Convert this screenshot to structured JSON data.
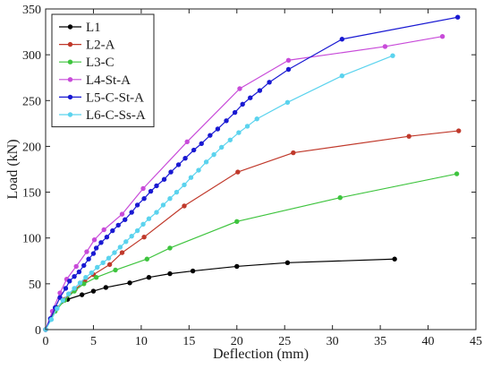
{
  "chart_data": {
    "type": "line",
    "title": "",
    "xlabel": "Deflection (mm)",
    "ylabel": "Load (kN)",
    "xlim": [
      0,
      45
    ],
    "ylim": [
      0,
      350
    ],
    "xticks": [
      0,
      5,
      10,
      15,
      20,
      25,
      30,
      35,
      40,
      45
    ],
    "yticks": [
      0,
      50,
      100,
      150,
      200,
      250,
      300,
      350
    ],
    "grid": false,
    "legend_placement": "top-left",
    "series": [
      {
        "name": "L1",
        "color": "#000000",
        "points": [
          [
            0,
            0
          ],
          [
            1.1,
            24
          ],
          [
            2.3,
            33
          ],
          [
            3.8,
            38
          ],
          [
            5.0,
            42
          ],
          [
            6.3,
            46
          ],
          [
            8.8,
            51
          ],
          [
            10.8,
            57
          ],
          [
            13.0,
            61
          ],
          [
            15.4,
            64
          ],
          [
            20.0,
            69
          ],
          [
            25.3,
            73
          ],
          [
            36.5,
            77
          ]
        ]
      },
      {
        "name": "L2-A",
        "color": "#c0392b",
        "points": [
          [
            0,
            0
          ],
          [
            1.0,
            22
          ],
          [
            2.0,
            33
          ],
          [
            3.1,
            44
          ],
          [
            4.1,
            53
          ],
          [
            5.0,
            60
          ],
          [
            6.7,
            71
          ],
          [
            8.0,
            84
          ],
          [
            10.3,
            101
          ],
          [
            14.5,
            135
          ],
          [
            20.1,
            172
          ],
          [
            25.9,
            193
          ],
          [
            38.0,
            211
          ],
          [
            43.2,
            217
          ]
        ]
      },
      {
        "name": "L3-C",
        "color": "#3ec43e",
        "points": [
          [
            0,
            0
          ],
          [
            1.0,
            20
          ],
          [
            2.0,
            32
          ],
          [
            3.0,
            42
          ],
          [
            4.0,
            50
          ],
          [
            5.3,
            57
          ],
          [
            7.3,
            65
          ],
          [
            10.6,
            77
          ],
          [
            13.0,
            89
          ],
          [
            20.0,
            118
          ],
          [
            30.8,
            144
          ],
          [
            43.0,
            170
          ]
        ]
      },
      {
        "name": "L4-St-A",
        "color": "#c84bd9",
        "points": [
          [
            0,
            0
          ],
          [
            0.7,
            20
          ],
          [
            1.5,
            40
          ],
          [
            2.2,
            55
          ],
          [
            3.2,
            69
          ],
          [
            4.3,
            85
          ],
          [
            5.1,
            98
          ],
          [
            6.1,
            109
          ],
          [
            8.0,
            126
          ],
          [
            10.2,
            154
          ],
          [
            14.8,
            205
          ],
          [
            20.3,
            263
          ],
          [
            25.4,
            294
          ],
          [
            35.5,
            309
          ],
          [
            41.5,
            320
          ]
        ]
      },
      {
        "name": "L5-C-St-A",
        "color": "#1919d2",
        "points": [
          [
            0,
            0
          ],
          [
            0.5,
            12
          ],
          [
            1.0,
            24
          ],
          [
            1.5,
            35
          ],
          [
            2.1,
            45
          ],
          [
            2.5,
            53
          ],
          [
            3.0,
            58
          ],
          [
            3.5,
            63
          ],
          [
            4.0,
            70
          ],
          [
            4.5,
            77
          ],
          [
            5.0,
            83
          ],
          [
            5.3,
            89
          ],
          [
            5.8,
            95
          ],
          [
            6.4,
            101
          ],
          [
            7.0,
            108
          ],
          [
            7.6,
            114
          ],
          [
            8.3,
            120
          ],
          [
            9.0,
            128
          ],
          [
            9.6,
            136
          ],
          [
            10.3,
            143
          ],
          [
            11.0,
            151
          ],
          [
            11.6,
            157
          ],
          [
            12.4,
            164
          ],
          [
            13.1,
            172
          ],
          [
            13.9,
            180
          ],
          [
            14.6,
            187
          ],
          [
            15.5,
            196
          ],
          [
            16.3,
            203
          ],
          [
            17.2,
            212
          ],
          [
            18.0,
            219
          ],
          [
            18.9,
            228
          ],
          [
            19.8,
            237
          ],
          [
            20.6,
            246
          ],
          [
            21.4,
            253
          ],
          [
            22.4,
            261
          ],
          [
            23.4,
            270
          ],
          [
            25.4,
            284
          ],
          [
            31.0,
            317
          ],
          [
            43.1,
            341
          ]
        ]
      },
      {
        "name": "L6-C-Ss-A",
        "color": "#5bd3ee",
        "points": [
          [
            0,
            0
          ],
          [
            0.6,
            11
          ],
          [
            1.2,
            23
          ],
          [
            1.8,
            32
          ],
          [
            2.4,
            39
          ],
          [
            3.0,
            45
          ],
          [
            3.6,
            51
          ],
          [
            4.2,
            57
          ],
          [
            4.8,
            62
          ],
          [
            5.4,
            68
          ],
          [
            6.0,
            73
          ],
          [
            6.6,
            78
          ],
          [
            7.2,
            84
          ],
          [
            7.8,
            90
          ],
          [
            8.4,
            96
          ],
          [
            9.0,
            102
          ],
          [
            9.6,
            108
          ],
          [
            10.2,
            115
          ],
          [
            10.8,
            121
          ],
          [
            11.6,
            128
          ],
          [
            12.3,
            136
          ],
          [
            13.0,
            143
          ],
          [
            13.7,
            150
          ],
          [
            14.5,
            158
          ],
          [
            15.2,
            166
          ],
          [
            16.0,
            174
          ],
          [
            16.8,
            183
          ],
          [
            17.6,
            191
          ],
          [
            18.4,
            199
          ],
          [
            19.3,
            207
          ],
          [
            20.2,
            215
          ],
          [
            21.1,
            222
          ],
          [
            22.1,
            230
          ],
          [
            25.3,
            248
          ],
          [
            31.0,
            277
          ],
          [
            36.3,
            299
          ]
        ]
      }
    ]
  }
}
